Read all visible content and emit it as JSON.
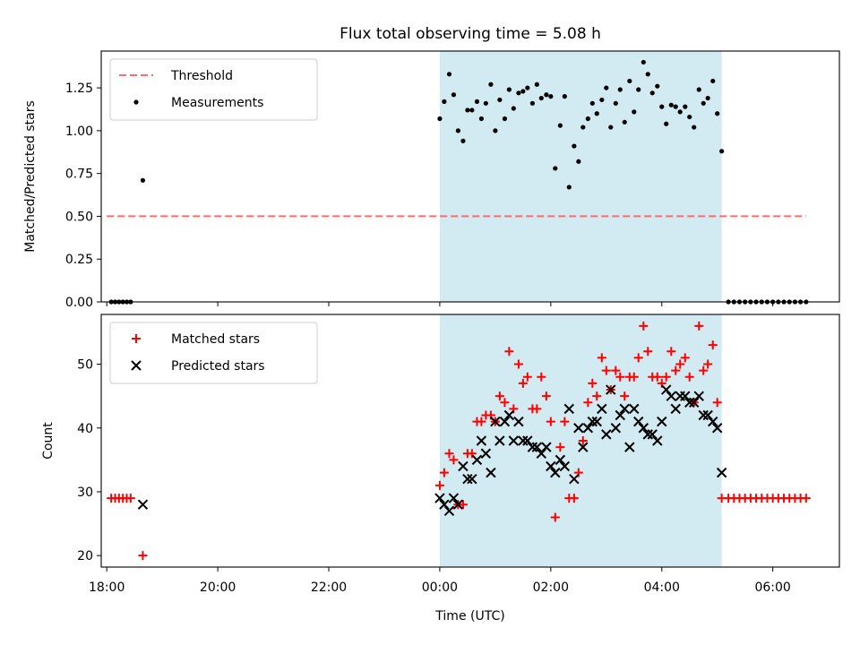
{
  "chart_data": {
    "title": "Flux total observing time = 5.08 h",
    "xlabel": "Time (UTC)",
    "x_unit": "hours relative to 00:00 UTC",
    "x_range": [
      -6.1,
      7.2
    ],
    "x_ticks": [
      {
        "value": -6,
        "label": "18:00"
      },
      {
        "value": -4,
        "label": "20:00"
      },
      {
        "value": -2,
        "label": "22:00"
      },
      {
        "value": 0,
        "label": "00:00"
      },
      {
        "value": 2,
        "label": "02:00"
      },
      {
        "value": 4,
        "label": "04:00"
      },
      {
        "value": 6,
        "label": "06:00"
      }
    ],
    "shaded_span": {
      "x_start": 0.0,
      "x_end": 5.08,
      "color": "#add8e6"
    },
    "panels": [
      {
        "type": "scatter",
        "ylabel": "Matched/Predicted stars",
        "ylim": [
          0,
          1.465
        ],
        "y_ticks": [
          "0.00",
          "0.25",
          "0.50",
          "0.75",
          "1.00",
          "1.25"
        ],
        "legend_position": "top-left",
        "threshold": {
          "name": "Threshold",
          "value": 0.5,
          "x_range": [
            -6.0,
            6.6
          ],
          "color": "#ff6b6b"
        },
        "series": [
          {
            "name": "Measurements",
            "color": "#000000",
            "points": [
              [
                -5.92,
                0
              ],
              [
                -5.85,
                0
              ],
              [
                -5.78,
                0
              ],
              [
                -5.71,
                0
              ],
              [
                -5.64,
                0
              ],
              [
                -5.57,
                0
              ],
              [
                -5.35,
                0.71
              ],
              [
                0.0,
                1.07
              ],
              [
                0.08,
                1.17
              ],
              [
                0.17,
                1.33
              ],
              [
                0.25,
                1.21
              ],
              [
                0.33,
                1.0
              ],
              [
                0.42,
                0.94
              ],
              [
                0.5,
                1.12
              ],
              [
                0.58,
                1.12
              ],
              [
                0.67,
                1.17
              ],
              [
                0.75,
                1.07
              ],
              [
                0.83,
                1.16
              ],
              [
                0.92,
                1.27
              ],
              [
                1.0,
                1.0
              ],
              [
                1.08,
                1.18
              ],
              [
                1.17,
                1.07
              ],
              [
                1.25,
                1.24
              ],
              [
                1.33,
                1.13
              ],
              [
                1.42,
                1.22
              ],
              [
                1.5,
                1.23
              ],
              [
                1.58,
                1.25
              ],
              [
                1.67,
                1.16
              ],
              [
                1.75,
                1.27
              ],
              [
                1.83,
                1.19
              ],
              [
                1.92,
                1.21
              ],
              [
                2.0,
                1.2
              ],
              [
                2.08,
                0.78
              ],
              [
                2.17,
                1.03
              ],
              [
                2.25,
                1.2
              ],
              [
                2.33,
                0.67
              ],
              [
                2.42,
                0.91
              ],
              [
                2.5,
                0.82
              ],
              [
                2.58,
                1.02
              ],
              [
                2.67,
                1.07
              ],
              [
                2.75,
                1.16
              ],
              [
                2.83,
                1.1
              ],
              [
                2.92,
                1.18
              ],
              [
                3.0,
                1.25
              ],
              [
                3.08,
                1.02
              ],
              [
                3.17,
                1.16
              ],
              [
                3.25,
                1.24
              ],
              [
                3.33,
                1.05
              ],
              [
                3.42,
                1.29
              ],
              [
                3.5,
                1.11
              ],
              [
                3.58,
                1.24
              ],
              [
                3.67,
                1.4
              ],
              [
                3.75,
                1.33
              ],
              [
                3.83,
                1.22
              ],
              [
                3.92,
                1.26
              ],
              [
                4.0,
                1.14
              ],
              [
                4.08,
                1.04
              ],
              [
                4.17,
                1.15
              ],
              [
                4.25,
                1.14
              ],
              [
                4.33,
                1.11
              ],
              [
                4.42,
                1.14
              ],
              [
                4.5,
                1.08
              ],
              [
                4.58,
                1.02
              ],
              [
                4.67,
                1.24
              ],
              [
                4.75,
                1.16
              ],
              [
                4.83,
                1.19
              ],
              [
                4.92,
                1.29
              ],
              [
                5.0,
                1.1
              ],
              [
                5.08,
                0.88
              ],
              [
                5.2,
                0
              ],
              [
                5.3,
                0
              ],
              [
                5.4,
                0
              ],
              [
                5.5,
                0
              ],
              [
                5.6,
                0
              ],
              [
                5.7,
                0
              ],
              [
                5.8,
                0
              ],
              [
                5.9,
                0
              ],
              [
                6.0,
                0
              ],
              [
                6.1,
                0
              ],
              [
                6.2,
                0
              ],
              [
                6.3,
                0
              ],
              [
                6.4,
                0
              ],
              [
                6.5,
                0
              ],
              [
                6.6,
                0
              ]
            ]
          }
        ]
      },
      {
        "type": "scatter",
        "ylabel": "Count",
        "ylim": [
          18.2,
          57.8
        ],
        "y_ticks": [
          "20",
          "30",
          "40",
          "50"
        ],
        "legend_position": "top-left",
        "series": [
          {
            "name": "Matched stars",
            "marker": "plus",
            "color": "#ff0000",
            "points": [
              [
                -5.92,
                29
              ],
              [
                -5.85,
                29
              ],
              [
                -5.78,
                29
              ],
              [
                -5.71,
                29
              ],
              [
                -5.64,
                29
              ],
              [
                -5.57,
                29
              ],
              [
                -5.35,
                20
              ],
              [
                0.0,
                31
              ],
              [
                0.08,
                33
              ],
              [
                0.17,
                36
              ],
              [
                0.25,
                35
              ],
              [
                0.33,
                28
              ],
              [
                0.42,
                28
              ],
              [
                0.5,
                36
              ],
              [
                0.58,
                36
              ],
              [
                0.67,
                41
              ],
              [
                0.75,
                41
              ],
              [
                0.83,
                42
              ],
              [
                0.92,
                42
              ],
              [
                1.0,
                41
              ],
              [
                1.08,
                45
              ],
              [
                1.17,
                44
              ],
              [
                1.25,
                52
              ],
              [
                1.33,
                43
              ],
              [
                1.42,
                50
              ],
              [
                1.5,
                47
              ],
              [
                1.58,
                48
              ],
              [
                1.67,
                43
              ],
              [
                1.75,
                43
              ],
              [
                1.83,
                48
              ],
              [
                1.92,
                45
              ],
              [
                2.0,
                41
              ],
              [
                2.08,
                26
              ],
              [
                2.17,
                37
              ],
              [
                2.25,
                41
              ],
              [
                2.33,
                29
              ],
              [
                2.42,
                29
              ],
              [
                2.5,
                33
              ],
              [
                2.58,
                38
              ],
              [
                2.67,
                44
              ],
              [
                2.75,
                47
              ],
              [
                2.83,
                45
              ],
              [
                2.92,
                51
              ],
              [
                3.0,
                49
              ],
              [
                3.08,
                46
              ],
              [
                3.17,
                49
              ],
              [
                3.25,
                48
              ],
              [
                3.33,
                45
              ],
              [
                3.42,
                48
              ],
              [
                3.5,
                48
              ],
              [
                3.58,
                51
              ],
              [
                3.67,
                56
              ],
              [
                3.75,
                52
              ],
              [
                3.83,
                48
              ],
              [
                3.92,
                48
              ],
              [
                4.0,
                47
              ],
              [
                4.08,
                48
              ],
              [
                4.17,
                52
              ],
              [
                4.25,
                49
              ],
              [
                4.33,
                50
              ],
              [
                4.42,
                51
              ],
              [
                4.5,
                48
              ],
              [
                4.58,
                44
              ],
              [
                4.67,
                56
              ],
              [
                4.75,
                49
              ],
              [
                4.83,
                50
              ],
              [
                4.92,
                53
              ],
              [
                5.0,
                44
              ],
              [
                5.08,
                29
              ],
              [
                5.2,
                29
              ],
              [
                5.3,
                29
              ],
              [
                5.4,
                29
              ],
              [
                5.5,
                29
              ],
              [
                5.6,
                29
              ],
              [
                5.7,
                29
              ],
              [
                5.8,
                29
              ],
              [
                5.9,
                29
              ],
              [
                6.0,
                29
              ],
              [
                6.1,
                29
              ],
              [
                6.2,
                29
              ],
              [
                6.3,
                29
              ],
              [
                6.4,
                29
              ],
              [
                6.5,
                29
              ],
              [
                6.6,
                29
              ]
            ]
          },
          {
            "name": "Predicted stars",
            "marker": "x",
            "color": "#000000",
            "points": [
              [
                -5.35,
                28
              ],
              [
                0.0,
                29
              ],
              [
                0.08,
                28
              ],
              [
                0.17,
                27
              ],
              [
                0.25,
                29
              ],
              [
                0.33,
                28
              ],
              [
                0.42,
                34
              ],
              [
                0.5,
                32
              ],
              [
                0.58,
                32
              ],
              [
                0.67,
                35
              ],
              [
                0.75,
                38
              ],
              [
                0.83,
                36
              ],
              [
                0.92,
                33
              ],
              [
                1.0,
                41
              ],
              [
                1.08,
                38
              ],
              [
                1.17,
                41
              ],
              [
                1.25,
                42
              ],
              [
                1.33,
                38
              ],
              [
                1.42,
                41
              ],
              [
                1.5,
                38
              ],
              [
                1.58,
                38
              ],
              [
                1.67,
                37
              ],
              [
                1.75,
                37
              ],
              [
                1.83,
                36
              ],
              [
                1.92,
                37
              ],
              [
                2.0,
                34
              ],
              [
                2.08,
                33
              ],
              [
                2.17,
                35
              ],
              [
                2.25,
                34
              ],
              [
                2.33,
                43
              ],
              [
                2.42,
                32
              ],
              [
                2.5,
                40
              ],
              [
                2.58,
                37
              ],
              [
                2.67,
                40
              ],
              [
                2.75,
                41
              ],
              [
                2.83,
                41
              ],
              [
                2.92,
                43
              ],
              [
                3.0,
                39
              ],
              [
                3.08,
                46
              ],
              [
                3.17,
                40
              ],
              [
                3.25,
                42
              ],
              [
                3.33,
                43
              ],
              [
                3.42,
                37
              ],
              [
                3.5,
                43
              ],
              [
                3.58,
                41
              ],
              [
                3.67,
                40
              ],
              [
                3.75,
                39
              ],
              [
                3.83,
                39
              ],
              [
                3.92,
                38
              ],
              [
                4.0,
                41
              ],
              [
                4.08,
                46
              ],
              [
                4.17,
                45
              ],
              [
                4.25,
                43
              ],
              [
                4.33,
                45
              ],
              [
                4.42,
                45
              ],
              [
                4.5,
                44
              ],
              [
                4.58,
                44
              ],
              [
                4.67,
                45
              ],
              [
                4.75,
                42
              ],
              [
                4.83,
                42
              ],
              [
                4.92,
                41
              ],
              [
                5.0,
                40
              ],
              [
                5.08,
                33
              ]
            ]
          }
        ]
      }
    ]
  }
}
